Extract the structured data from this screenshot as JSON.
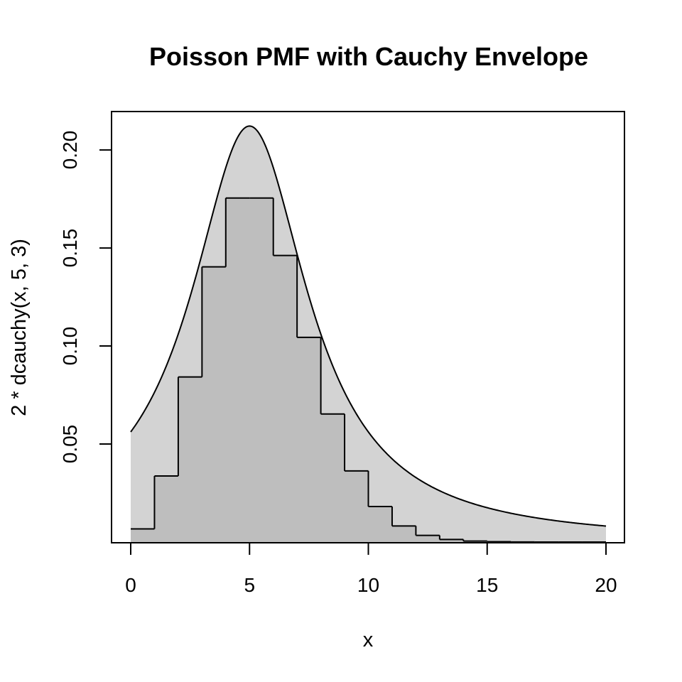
{
  "chart_data": {
    "type": "area",
    "title": "Poisson PMF with Cauchy Envelope",
    "xlabel": "x",
    "ylabel": "2 * dcauchy(x, 5, 3)",
    "xlim": [
      0,
      20
    ],
    "ylim": [
      0,
      0.212
    ],
    "x_ticks": [
      0,
      5,
      10,
      15,
      20
    ],
    "y_ticks": [
      0.05,
      0.1,
      0.15,
      0.2
    ],
    "x_tick_labels": [
      "0",
      "5",
      "10",
      "15",
      "20"
    ],
    "y_tick_labels": [
      "0.05",
      "0.10",
      "0.15",
      "0.20"
    ],
    "grid": false,
    "series": [
      {
        "kind": "curve",
        "function": "2 * dcauchy(x, 5, 3)",
        "location": 5,
        "scale": 3,
        "multiplier": 2,
        "x_range": [
          0,
          20
        ],
        "fill": "#d3d3d3"
      },
      {
        "kind": "step",
        "lambda": 5,
        "x": [
          0,
          1,
          2,
          3,
          4,
          5,
          6,
          7,
          8,
          9,
          10,
          11,
          12,
          13,
          14,
          15,
          16,
          17,
          18,
          19
        ],
        "values": [
          0.0067,
          0.0337,
          0.0842,
          0.1404,
          0.1755,
          0.1755,
          0.1462,
          0.1044,
          0.0653,
          0.0363,
          0.0181,
          0.0082,
          0.0034,
          0.0013,
          0.0005,
          0.0002,
          5e-05,
          1e-05,
          0.0,
          0.0
        ],
        "fill": "#bebebe"
      }
    ]
  }
}
